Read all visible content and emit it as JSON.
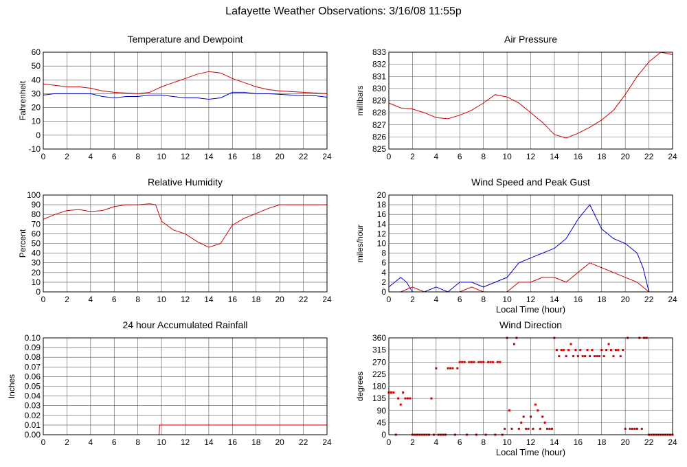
{
  "title": "Lafayette Weather Observations: 3/16/08 11:55p",
  "chart_data": [
    {
      "id": "temp",
      "type": "line",
      "title": "Temperature and Dewpoint",
      "xlabel": "",
      "ylabel": "Fahrenheit",
      "xlim": [
        0,
        24
      ],
      "ylim": [
        -10,
        60
      ],
      "xticks": [
        0,
        2,
        4,
        6,
        8,
        10,
        12,
        14,
        16,
        18,
        20,
        22,
        24
      ],
      "yticks": [
        -10,
        0,
        10,
        20,
        30,
        40,
        50,
        60
      ],
      "grid": true,
      "series": [
        {
          "color": "#cc0000",
          "x": [
            0,
            1,
            2,
            3,
            4,
            5,
            6,
            7,
            8,
            9,
            10,
            11,
            12,
            13,
            14,
            15,
            16,
            17,
            18,
            19,
            20,
            21,
            22,
            23,
            24
          ],
          "y": [
            37,
            36,
            35,
            35,
            34,
            32,
            31,
            30.5,
            30,
            31,
            35,
            38,
            41,
            44,
            46,
            45,
            41,
            38,
            35,
            33,
            32,
            31.5,
            31,
            30.5,
            30
          ]
        },
        {
          "color": "#0000cc",
          "x": [
            0,
            1,
            2,
            3,
            4,
            5,
            6,
            7,
            8,
            9,
            10,
            11,
            12,
            13,
            14,
            15,
            16,
            17,
            18,
            19,
            20,
            21,
            22,
            23,
            24
          ],
          "y": [
            29,
            30,
            30,
            30,
            30,
            28,
            27,
            28,
            28,
            29,
            29,
            28,
            27,
            27,
            26,
            27,
            31,
            31,
            30,
            30,
            29.5,
            29,
            28.5,
            28.5,
            27.5
          ]
        }
      ]
    },
    {
      "id": "pressure",
      "type": "line",
      "title": "Air Pressure",
      "xlabel": "",
      "ylabel": "millibars",
      "xlim": [
        0,
        24
      ],
      "ylim": [
        825,
        833
      ],
      "xticks": [
        0,
        2,
        4,
        6,
        8,
        10,
        12,
        14,
        16,
        18,
        20,
        22,
        24
      ],
      "yticks": [
        825,
        826,
        827,
        828,
        829,
        830,
        831,
        832,
        833
      ],
      "grid": true,
      "series": [
        {
          "color": "#cc0000",
          "x": [
            0,
            0.5,
            1,
            2,
            3,
            4,
            5,
            6,
            7,
            8,
            9,
            10,
            11,
            12,
            13,
            14,
            15,
            16,
            17,
            18,
            19,
            20,
            21,
            22,
            23,
            24
          ],
          "y": [
            828.8,
            828.6,
            828.4,
            828.3,
            828.0,
            827.6,
            827.5,
            827.8,
            828.2,
            828.8,
            829.5,
            829.3,
            828.8,
            828.0,
            827.2,
            826.2,
            825.9,
            826.3,
            826.8,
            827.4,
            828.2,
            829.5,
            831.0,
            832.2,
            833.0,
            832.8
          ]
        }
      ]
    },
    {
      "id": "rh",
      "type": "line",
      "title": "Relative Humidity",
      "xlabel": "",
      "ylabel": "Percent",
      "xlim": [
        0,
        24
      ],
      "ylim": [
        0,
        100
      ],
      "xticks": [
        0,
        2,
        4,
        6,
        8,
        10,
        12,
        14,
        16,
        18,
        20,
        22,
        24
      ],
      "yticks": [
        0,
        10,
        20,
        30,
        40,
        50,
        60,
        70,
        80,
        90,
        100
      ],
      "grid": true,
      "series": [
        {
          "color": "#cc0000",
          "x": [
            0,
            1,
            2,
            3,
            4,
            5,
            6,
            7,
            8,
            9,
            9.5,
            10,
            11,
            12,
            13,
            14,
            15,
            16,
            17,
            18,
            19,
            20,
            21,
            22,
            23,
            24
          ],
          "y": [
            75,
            80,
            84,
            85,
            83,
            84,
            88,
            90,
            90,
            91,
            90,
            73,
            64,
            60,
            52,
            46,
            50,
            69,
            76,
            81,
            86,
            90,
            90,
            90,
            90,
            90
          ]
        }
      ]
    },
    {
      "id": "wind",
      "type": "line",
      "title": "Wind Speed and Peak Gust",
      "xlabel": "Local Time (hour)",
      "ylabel": "miles/hour",
      "xlim": [
        0,
        24
      ],
      "ylim": [
        0,
        20
      ],
      "xticks": [
        0,
        2,
        4,
        6,
        8,
        10,
        12,
        14,
        16,
        18,
        20,
        22,
        24
      ],
      "yticks": [
        0,
        2,
        4,
        6,
        8,
        10,
        12,
        14,
        16,
        18,
        20
      ],
      "grid": true,
      "series": [
        {
          "color": "#0000cc",
          "x": [
            0,
            0.5,
            1,
            1.5,
            2,
            3,
            4,
            5,
            6,
            7,
            8,
            9,
            10,
            11,
            12,
            13,
            14,
            15,
            16,
            17,
            18,
            19,
            20,
            21,
            21.5,
            22,
            23,
            24
          ],
          "y": [
            1,
            2,
            3,
            2,
            0,
            0,
            1,
            0,
            2,
            2,
            1,
            2,
            3,
            6,
            7,
            8,
            9,
            11,
            15,
            18,
            13,
            11,
            10,
            8,
            5,
            0,
            0,
            0
          ]
        },
        {
          "color": "#cc0000",
          "x": [
            0,
            1,
            2,
            3,
            4,
            5,
            6,
            7,
            8,
            9,
            10,
            11,
            12,
            13,
            14,
            15,
            16,
            17,
            18,
            19,
            20,
            21,
            22,
            23,
            24
          ],
          "y": [
            0,
            0,
            1,
            0,
            0,
            0,
            0,
            1,
            0,
            0,
            0,
            2,
            2,
            3,
            3,
            2,
            4,
            6,
            5,
            4,
            3,
            2,
            0,
            0,
            0
          ]
        }
      ]
    },
    {
      "id": "rain",
      "type": "line",
      "title": "24 hour Accumulated Rainfall",
      "xlabel": "",
      "ylabel": "Inches",
      "xlim": [
        0,
        24
      ],
      "ylim": [
        0,
        0.1
      ],
      "xticks": [
        0,
        2,
        4,
        6,
        8,
        10,
        12,
        14,
        16,
        18,
        20,
        22,
        24
      ],
      "yticks": [
        0,
        0.01,
        0.02,
        0.03,
        0.04,
        0.05,
        0.06,
        0.07,
        0.08,
        0.09,
        0.1
      ],
      "ytick_labels": [
        "0.00",
        "0.01",
        "0.02",
        "0.03",
        "0.04",
        "0.05",
        "0.06",
        "0.07",
        "0.08",
        "0.09",
        "0.10"
      ],
      "grid": true,
      "series": [
        {
          "color": "#cc0000",
          "x": [
            0,
            9.8,
            9.85,
            24
          ],
          "y": [
            0,
            0,
            0.01,
            0.01
          ]
        }
      ]
    },
    {
      "id": "winddir",
      "type": "scatter",
      "title": "Wind Direction",
      "xlabel": "Local Time (hour)",
      "ylabel": "degrees",
      "xlim": [
        0,
        24
      ],
      "ylim": [
        0,
        360
      ],
      "xticks": [
        0,
        2,
        4,
        6,
        8,
        10,
        12,
        14,
        16,
        18,
        20,
        22,
        24
      ],
      "yticks": [
        0,
        45,
        90,
        135,
        180,
        225,
        270,
        315,
        360
      ],
      "grid": true,
      "series": [
        {
          "color": "#cc0000",
          "x": [
            0,
            0.2,
            0.4,
            0.6,
            0.8,
            1.0,
            1.2,
            1.4,
            1.6,
            1.8,
            2.0,
            2.2,
            2.4,
            2.6,
            2.8,
            3.0,
            3.2,
            3.4,
            3.6,
            3.8,
            4.0,
            4.2,
            4.4,
            4.6,
            4.8,
            5.0,
            5.2,
            5.4,
            5.6,
            5.8,
            6.0,
            6.2,
            6.4,
            6.6,
            6.8,
            7.0,
            7.2,
            7.4,
            7.6,
            7.8,
            8.0,
            8.2,
            8.4,
            8.6,
            8.8,
            9.0,
            9.2,
            9.4,
            9.6,
            9.8,
            10.0,
            10.2,
            10.4,
            10.6,
            10.8,
            11.0,
            11.2,
            11.4,
            11.6,
            11.8,
            12.0,
            12.2,
            12.4,
            12.6,
            12.8,
            13.0,
            13.2,
            13.4,
            13.6,
            13.8,
            14.0,
            14.2,
            14.4,
            14.6,
            14.8,
            15.0,
            15.2,
            15.4,
            15.6,
            15.8,
            16.0,
            16.2,
            16.4,
            16.6,
            16.8,
            17.0,
            17.2,
            17.4,
            17.6,
            17.8,
            18.0,
            18.2,
            18.4,
            18.6,
            18.8,
            19.0,
            19.2,
            19.4,
            19.6,
            19.8,
            20.0,
            20.2,
            20.4,
            20.6,
            20.8,
            21.0,
            21.2,
            21.4,
            21.6,
            21.8,
            22.0,
            22.2,
            22.4,
            22.6,
            22.8,
            23.0,
            23.2,
            23.4,
            23.6,
            23.8,
            24.0
          ],
          "y": [
            157,
            157,
            157,
            0,
            135,
            112,
            157,
            135,
            135,
            135,
            0,
            0,
            0,
            0,
            0,
            0,
            0,
            0,
            135,
            0,
            247,
            0,
            0,
            0,
            0,
            247,
            247,
            247,
            0,
            247,
            270,
            270,
            270,
            0,
            270,
            270,
            270,
            0,
            270,
            270,
            270,
            0,
            270,
            270,
            270,
            0,
            270,
            270,
            0,
            22,
            360,
            90,
            22,
            337,
            360,
            22,
            45,
            67,
            22,
            22,
            67,
            22,
            112,
            90,
            22,
            67,
            45,
            22,
            22,
            22,
            360,
            315,
            292,
            315,
            315,
            292,
            315,
            337,
            292,
            315,
            292,
            315,
            292,
            292,
            315,
            292,
            315,
            292,
            292,
            292,
            315,
            292,
            315,
            337,
            315,
            292,
            315,
            315,
            292,
            315,
            22,
            360,
            22,
            22,
            22,
            22,
            360,
            22,
            360,
            360,
            0,
            0,
            0,
            0,
            0,
            0,
            0,
            0,
            0,
            0,
            0
          ]
        }
      ]
    }
  ]
}
